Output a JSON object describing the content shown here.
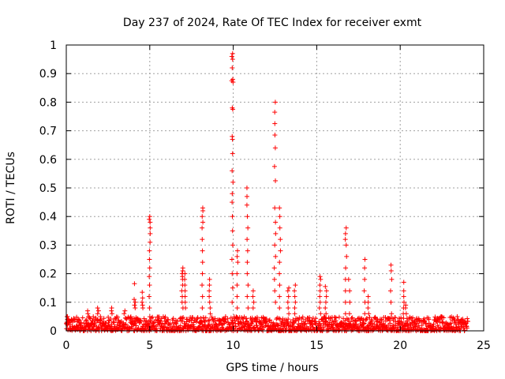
{
  "chart_data": {
    "type": "scatter",
    "title": "Day 237 of 2024, Rate Of TEC Index for receiver exmt",
    "xlabel": "GPS time / hours",
    "ylabel": "ROTI / TECUs",
    "xlim": [
      0,
      25
    ],
    "ylim": [
      0,
      1
    ],
    "x_ticks": [
      "0",
      "5",
      "10",
      "15",
      "20",
      "25"
    ],
    "y_ticks": [
      "0",
      "0.1",
      "0.2",
      "0.3",
      "0.4",
      "0.5",
      "0.6",
      "0.7",
      "0.8",
      "0.9",
      "1"
    ],
    "grid": true,
    "marker": "+",
    "color": "#ff0000",
    "background_band": {
      "x_range": [
        0,
        24.05
      ],
      "typical_max": 0.05
    },
    "spikes": [
      {
        "x": 0.05,
        "values": [
          0.02,
          0.03,
          0.04,
          0.05
        ]
      },
      {
        "x": 1.3,
        "values": [
          0.05,
          0.06,
          0.07
        ]
      },
      {
        "x": 1.9,
        "values": [
          0.06,
          0.07,
          0.08
        ]
      },
      {
        "x": 2.7,
        "values": [
          0.06,
          0.07,
          0.08
        ]
      },
      {
        "x": 3.5,
        "values": [
          0.06,
          0.07
        ]
      },
      {
        "x": 4.1,
        "values": [
          0.08,
          0.09,
          0.1,
          0.11,
          0.165
        ]
      },
      {
        "x": 4.55,
        "values": [
          0.08,
          0.09,
          0.1,
          0.115,
          0.135
        ]
      },
      {
        "x": 5.0,
        "values": [
          0.08,
          0.12,
          0.16,
          0.19,
          0.22,
          0.25,
          0.28,
          0.31,
          0.34,
          0.36,
          0.38,
          0.39,
          0.4
        ]
      },
      {
        "x": 6.95,
        "values": [
          0.08,
          0.1,
          0.12,
          0.14,
          0.16,
          0.18,
          0.19,
          0.2,
          0.21,
          0.22
        ]
      },
      {
        "x": 7.1,
        "values": [
          0.08,
          0.1,
          0.12,
          0.14,
          0.16,
          0.18,
          0.2
        ]
      },
      {
        "x": 8.15,
        "values": [
          0.08,
          0.12,
          0.16,
          0.2,
          0.24,
          0.28,
          0.32,
          0.36,
          0.38,
          0.4,
          0.42,
          0.43
        ]
      },
      {
        "x": 8.6,
        "values": [
          0.06,
          0.08,
          0.1,
          0.12,
          0.14,
          0.16,
          0.18
        ]
      },
      {
        "x": 9.95,
        "values": [
          0.1,
          0.15,
          0.2,
          0.25,
          0.3,
          0.35,
          0.4,
          0.45,
          0.48,
          0.52,
          0.56,
          0.62,
          0.67,
          0.68,
          0.775,
          0.78,
          0.87,
          0.875,
          0.88,
          0.92,
          0.95,
          0.96,
          0.97
        ]
      },
      {
        "x": 10.25,
        "values": [
          0.08,
          0.12,
          0.16,
          0.2,
          0.24,
          0.26,
          0.28
        ]
      },
      {
        "x": 10.85,
        "values": [
          0.08,
          0.12,
          0.16,
          0.2,
          0.24,
          0.28,
          0.32,
          0.36,
          0.4,
          0.44,
          0.47,
          0.5
        ]
      },
      {
        "x": 11.2,
        "values": [
          0.08,
          0.1,
          0.12,
          0.14
        ]
      },
      {
        "x": 12.5,
        "values": [
          0.1,
          0.14,
          0.18,
          0.22,
          0.26,
          0.3,
          0.34,
          0.38,
          0.43,
          0.525,
          0.575,
          0.64,
          0.685,
          0.725,
          0.765,
          0.8
        ]
      },
      {
        "x": 12.8,
        "values": [
          0.08,
          0.12,
          0.16,
          0.2,
          0.24,
          0.28,
          0.32,
          0.36,
          0.4,
          0.43
        ]
      },
      {
        "x": 13.3,
        "values": [
          0.06,
          0.08,
          0.1,
          0.12,
          0.14,
          0.15
        ]
      },
      {
        "x": 13.7,
        "values": [
          0.06,
          0.08,
          0.1,
          0.12,
          0.14,
          0.16
        ]
      },
      {
        "x": 15.2,
        "values": [
          0.06,
          0.08,
          0.1,
          0.12,
          0.14,
          0.16,
          0.18,
          0.19
        ]
      },
      {
        "x": 15.55,
        "values": [
          0.06,
          0.08,
          0.1,
          0.12,
          0.14,
          0.155
        ]
      },
      {
        "x": 16.75,
        "values": [
          0.06,
          0.1,
          0.14,
          0.18,
          0.22,
          0.26,
          0.3,
          0.32,
          0.34,
          0.36
        ]
      },
      {
        "x": 16.95,
        "values": [
          0.06,
          0.1,
          0.14,
          0.18
        ]
      },
      {
        "x": 17.85,
        "values": [
          0.06,
          0.1,
          0.14,
          0.18,
          0.22,
          0.25
        ]
      },
      {
        "x": 18.1,
        "values": [
          0.06,
          0.08,
          0.1,
          0.12
        ]
      },
      {
        "x": 19.45,
        "values": [
          0.06,
          0.1,
          0.14,
          0.18,
          0.21,
          0.23
        ]
      },
      {
        "x": 20.2,
        "values": [
          0.06,
          0.08,
          0.1,
          0.12,
          0.14,
          0.17
        ]
      },
      {
        "x": 20.35,
        "values": [
          0.06,
          0.08,
          0.09
        ]
      }
    ]
  }
}
